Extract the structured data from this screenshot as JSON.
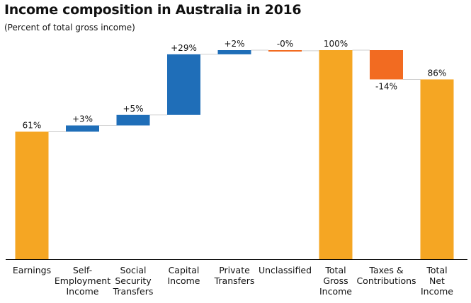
{
  "title": "Income composition in Australia in 2016",
  "subtitle": "(Percent of total gross income)",
  "colors": {
    "total": "#f5a623",
    "positive": "#1f6eb8",
    "negative": "#f26b21",
    "connector": "#cfcfcf",
    "axis": "#000000"
  },
  "chart_data": {
    "type": "waterfall",
    "title": "Income composition in Australia in 2016",
    "subtitle": "(Percent of total gross income)",
    "ylim": [
      0,
      100
    ],
    "grid": false,
    "legend": "none",
    "bars": [
      {
        "category": [
          "Earnings"
        ],
        "kind": "total",
        "start": 0,
        "end": 61,
        "label": "61%"
      },
      {
        "category": [
          "Self-",
          "Employment",
          "Income"
        ],
        "kind": "positive",
        "start": 61,
        "end": 64,
        "label": "+3%"
      },
      {
        "category": [
          "Social",
          "Security",
          "Transfers"
        ],
        "kind": "positive",
        "start": 64,
        "end": 69,
        "label": "+5%"
      },
      {
        "category": [
          "Capital",
          "Income"
        ],
        "kind": "positive",
        "start": 69,
        "end": 98,
        "label": "+29%"
      },
      {
        "category": [
          "Private",
          "Transfers"
        ],
        "kind": "positive",
        "start": 98,
        "end": 100,
        "label": "+2%"
      },
      {
        "category": [
          "Unclassified"
        ],
        "kind": "negative",
        "start": 100,
        "end": 99.7,
        "label": "-0%"
      },
      {
        "category": [
          "Total",
          "Gross",
          "Income"
        ],
        "kind": "total",
        "start": 0,
        "end": 100,
        "label": "100%"
      },
      {
        "category": [
          "Taxes &",
          "Contributions"
        ],
        "kind": "negative",
        "start": 100,
        "end": 86,
        "label": "-14%"
      },
      {
        "category": [
          "Total",
          "Net",
          "Income"
        ],
        "kind": "total",
        "start": 0,
        "end": 86,
        "label": "86%"
      }
    ]
  }
}
